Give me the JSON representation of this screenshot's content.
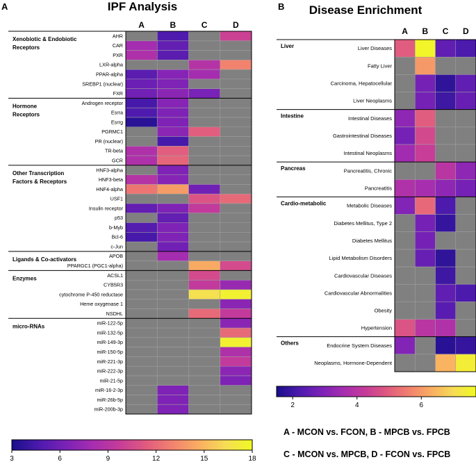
{
  "panel_a": {
    "letter": "A",
    "chart_data": {
      "type": "heatmap",
      "title": "IPF Analysis",
      "columns": [
        "A",
        "B",
        "C",
        "D"
      ],
      "colorbar": {
        "min": 3,
        "max": 18,
        "ticks": [
          3,
          6,
          9,
          12,
          15,
          18
        ]
      },
      "groups": [
        {
          "label": [
            "Xenobiotic & Endobiotic",
            "Receptors"
          ],
          "start": 0
        },
        {
          "label": [
            "Hormone",
            "Receptors"
          ],
          "start": 7
        },
        {
          "label": [
            "Other Transcription",
            "Factors & Receptors"
          ],
          "start": 14
        },
        {
          "label": [
            "Ligands & Co-activators"
          ],
          "start": 23
        },
        {
          "label": [
            "Enzymes"
          ],
          "start": 25
        },
        {
          "label": [
            "micro-RNAs"
          ],
          "start": 30
        }
      ],
      "rows": [
        {
          "label": "AHR",
          "values": [
            null,
            4.8,
            null,
            10.0
          ]
        },
        {
          "label": "CAR",
          "values": [
            8.0,
            5.5,
            null,
            null
          ]
        },
        {
          "label": "PXR",
          "values": [
            8.5,
            5.2,
            null,
            null
          ]
        },
        {
          "label": "LXR-alpha",
          "values": [
            null,
            null,
            8.8,
            13.0
          ]
        },
        {
          "label": "PPAR-alpha",
          "values": [
            5.2,
            6.8,
            8.0,
            null
          ]
        },
        {
          "label": "SREBP1 (nuclear)",
          "values": [
            5.8,
            6.5,
            null,
            null
          ]
        },
        {
          "label": "FXR",
          "values": [
            6.0,
            7.0,
            6.3,
            null
          ]
        },
        {
          "label": "Androgen receptor",
          "values": [
            4.5,
            6.8,
            null,
            null
          ]
        },
        {
          "label": "Esrra",
          "values": [
            4.8,
            6.5,
            null,
            null
          ]
        },
        {
          "label": "Esrrg",
          "values": [
            3.5,
            6.5,
            null,
            null
          ]
        },
        {
          "label": "PGRMC1",
          "values": [
            null,
            7.0,
            11.5,
            null
          ]
        },
        {
          "label": "PR (nuclear)",
          "values": [
            null,
            4.5,
            null,
            null
          ]
        },
        {
          "label": "TR-beta",
          "values": [
            8.5,
            11.5,
            null,
            null
          ]
        },
        {
          "label": "GCR",
          "values": [
            8.5,
            11.8,
            null,
            null
          ]
        },
        {
          "label": "HNF3-alpha",
          "values": [
            null,
            6.5,
            null,
            null
          ]
        },
        {
          "label": "HNF3-beta",
          "values": [
            8.8,
            6.8,
            null,
            null
          ]
        },
        {
          "label": "HNF4-alpha",
          "values": [
            12.5,
            14.0,
            6.0,
            null
          ]
        },
        {
          "label": "USF1",
          "values": [
            null,
            null,
            11.0,
            12.0
          ]
        },
        {
          "label": "Insulin receptor",
          "values": [
            5.5,
            6.5,
            9.5,
            null
          ]
        },
        {
          "label": "p53",
          "values": [
            null,
            5.5,
            null,
            null
          ]
        },
        {
          "label": "b-Myb",
          "values": [
            5.0,
            6.5,
            null,
            null
          ]
        },
        {
          "label": "Bcl-6",
          "values": [
            4.5,
            6.5,
            null,
            null
          ]
        },
        {
          "label": "c-Jun",
          "values": [
            null,
            6.0,
            null,
            null
          ]
        },
        {
          "label": "APOB",
          "values": [
            null,
            8.0,
            null,
            null
          ]
        },
        {
          "label": "PPARGC1 (PGC1-alpha)",
          "values": [
            null,
            null,
            14.5,
            10.5
          ]
        },
        {
          "label": "ACSL1",
          "values": [
            null,
            null,
            10.5,
            null
          ]
        },
        {
          "label": "CYB5R3",
          "values": [
            null,
            null,
            9.5,
            7.5
          ]
        },
        {
          "label": "cytochrome P-450 reductase",
          "values": [
            null,
            null,
            16.5,
            17.5
          ]
        },
        {
          "label": "Heme oxygenase 1",
          "values": [
            null,
            null,
            null,
            7.0
          ]
        },
        {
          "label": "NSDHL",
          "values": [
            null,
            null,
            12.0,
            9.5
          ]
        },
        {
          "label": "miR-122-5p",
          "values": [
            null,
            null,
            null,
            7.0
          ]
        },
        {
          "label": "miR-132-5p",
          "values": [
            null,
            null,
            null,
            12.0
          ]
        },
        {
          "label": "miR-149-3p",
          "values": [
            null,
            null,
            null,
            17.5
          ]
        },
        {
          "label": "miR-150-5p",
          "values": [
            null,
            null,
            null,
            8.5
          ]
        },
        {
          "label": "miR-221-3p",
          "values": [
            null,
            null,
            null,
            9.5
          ]
        },
        {
          "label": "miR-222-3p",
          "values": [
            null,
            null,
            null,
            7.0
          ]
        },
        {
          "label": "miR-21-5p",
          "values": [
            null,
            null,
            null,
            6.5
          ]
        },
        {
          "label": "miR-16-2-3p",
          "values": [
            null,
            6.5,
            null,
            null
          ]
        },
        {
          "label": "miR-26b-5p",
          "values": [
            null,
            6.5,
            null,
            null
          ]
        },
        {
          "label": "miR-200b-3p",
          "values": [
            null,
            6.5,
            null,
            null
          ]
        }
      ]
    }
  },
  "panel_b": {
    "letter": "B",
    "chart_data": {
      "type": "heatmap",
      "title": "Disease Enrichment",
      "columns": [
        "A",
        "B",
        "C",
        "D"
      ],
      "colorbar": {
        "min": 1.5,
        "max": 7.7,
        "ticks": [
          2,
          4,
          6
        ]
      },
      "groups": [
        {
          "label": "Liver",
          "start": 0
        },
        {
          "label": "Intestine",
          "start": 4
        },
        {
          "label": "Pancreas",
          "start": 7
        },
        {
          "label": "Cardio-metabolic",
          "start": 9
        },
        {
          "label": "Others",
          "start": 17
        }
      ],
      "rows": [
        {
          "label": "Liver Diseases",
          "values": [
            5.0,
            7.6,
            2.5,
            2.2
          ]
        },
        {
          "label": "Fatty Liver",
          "values": [
            null,
            6.0,
            null,
            null
          ]
        },
        {
          "label": "Carcinoma, Hepatocellular",
          "values": [
            null,
            2.8,
            1.8,
            2.5
          ]
        },
        {
          "label": "Liver Neoplasms",
          "values": [
            null,
            2.8,
            2.0,
            2.6
          ]
        },
        {
          "label": "Intestinal Diseases",
          "values": [
            3.2,
            5.0,
            null,
            null
          ]
        },
        {
          "label": "Gastrointestinal Diseases",
          "values": [
            2.8,
            4.6,
            null,
            null
          ]
        },
        {
          "label": "Intestinal Neoplasms",
          "values": [
            3.5,
            4.3,
            null,
            null
          ]
        },
        {
          "label": "Pancreatitis, Chronic",
          "values": [
            null,
            null,
            4.0,
            3.2
          ]
        },
        {
          "label": "Pancreatitis",
          "values": [
            3.8,
            3.6,
            3.2,
            2.8
          ]
        },
        {
          "label": "Metabolic Diseases",
          "values": [
            3.0,
            5.2,
            2.2,
            null
          ]
        },
        {
          "label": "Diabetes Mellitus, Type 2",
          "values": [
            null,
            2.8,
            1.9,
            null
          ]
        },
        {
          "label": "Diabetes Mellitus",
          "values": [
            null,
            2.8,
            null,
            null
          ]
        },
        {
          "label": "Lipid Metabolism Disorders",
          "values": [
            null,
            2.6,
            1.8,
            null
          ]
        },
        {
          "label": "Cardiovascular Diseases",
          "values": [
            null,
            null,
            2.0,
            null
          ]
        },
        {
          "label": "Cardiovascular Abnormalities",
          "values": [
            null,
            null,
            2.5,
            2.2
          ]
        },
        {
          "label": "Obesity",
          "values": [
            null,
            null,
            2.4,
            null
          ]
        },
        {
          "label": "Hypertension",
          "values": [
            4.8,
            4.0,
            3.8,
            null
          ]
        },
        {
          "label": "Endocrine System Diseases",
          "values": [
            3.0,
            null,
            1.7,
            1.9
          ]
        },
        {
          "label": "Neoplasms, Hormone-Dependent",
          "values": [
            null,
            null,
            6.4,
            7.4
          ]
        }
      ]
    }
  },
  "legend": {
    "line1": "A - MCON vs. FCON, B - MPCB vs. FPCB",
    "line2": "C - MCON vs. MPCB, D - FCON vs. FPCB"
  },
  "colors": {
    "na_cell": "#808080",
    "grid_line": "#a0a0a0",
    "text": "#000000",
    "colormap": [
      "#1a0e8a",
      "#4b1aad",
      "#7a22b7",
      "#a52db0",
      "#c53b99",
      "#e05a80",
      "#f2826e",
      "#f9ae62",
      "#f6dd55",
      "#f0f921"
    ]
  }
}
